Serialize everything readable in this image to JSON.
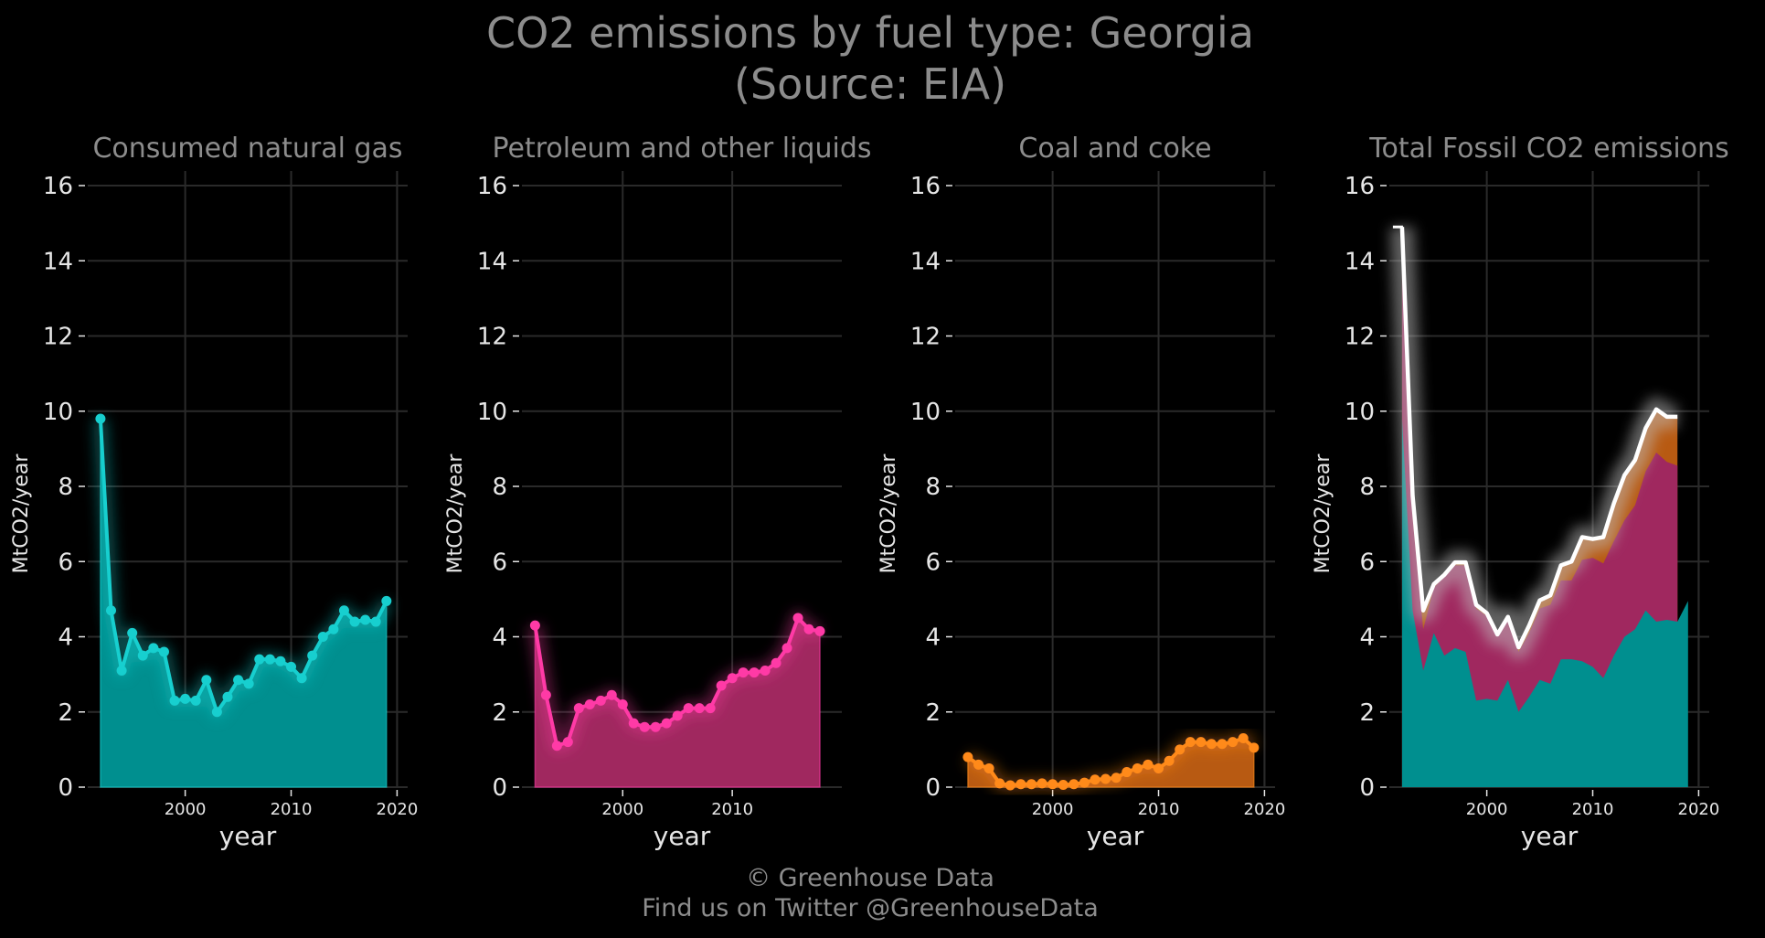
{
  "title_line1": "CO2 emissions by fuel type: Georgia",
  "title_line2": "(Source: EIA)",
  "footer_line1": "© Greenhouse Data",
  "footer_line2": "Find us on Twitter @GreenhouseData",
  "colors": {
    "background": "#000000",
    "grid": "#2a2a2a",
    "gas": "#17cfcf",
    "gas_fill": "#008f8f",
    "petroleum": "#ff3aa6",
    "petroleum_fill": "#a0285f",
    "coal": "#ff8a1a",
    "coal_fill": "#b85a12",
    "total": "#ffffff"
  },
  "chart_data": [
    {
      "type": "area",
      "title": "Consumed natural gas",
      "xlabel": "year",
      "ylabel": "MtCO2/year",
      "xlim": [
        1990.8,
        2021
      ],
      "ylim": [
        0,
        16
      ],
      "xticks": [
        2000,
        2010,
        2020
      ],
      "yticks": [
        0,
        2,
        4,
        6,
        8,
        10,
        12,
        14,
        16
      ],
      "grid": true,
      "series": [
        {
          "color": "#17cfcf",
          "x": [
            1992,
            1993,
            1994,
            1995,
            1996,
            1997,
            1998,
            1999,
            2000,
            2001,
            2002,
            2003,
            2004,
            2005,
            2006,
            2007,
            2008,
            2009,
            2010,
            2011,
            2012,
            2013,
            2014,
            2015,
            2016,
            2017,
            2018,
            2019
          ],
          "values": [
            9.8,
            4.7,
            3.1,
            4.1,
            3.5,
            3.7,
            3.6,
            2.3,
            2.35,
            2.3,
            2.85,
            2.0,
            2.4,
            2.85,
            2.75,
            3.4,
            3.4,
            3.35,
            3.2,
            2.9,
            3.5,
            4.0,
            4.2,
            4.7,
            4.4,
            4.45,
            4.4,
            4.95
          ]
        }
      ]
    },
    {
      "type": "area",
      "title": "Petroleum and other liquids",
      "xlabel": "year",
      "ylabel": "MtCO2/year",
      "xlim": [
        1990.8,
        2020
      ],
      "ylim": [
        0,
        16
      ],
      "xticks": [
        2000,
        2010
      ],
      "yticks": [
        0,
        2,
        4,
        6,
        8,
        10,
        12,
        14,
        16
      ],
      "grid": true,
      "series": [
        {
          "color": "#ff3aa6",
          "x": [
            1992,
            1993,
            1994,
            1995,
            1996,
            1997,
            1998,
            1999,
            2000,
            2001,
            2002,
            2003,
            2004,
            2005,
            2006,
            2007,
            2008,
            2009,
            2010,
            2011,
            2012,
            2013,
            2014,
            2015,
            2016,
            2017,
            2018
          ],
          "values": [
            4.3,
            2.45,
            1.1,
            1.2,
            2.1,
            2.2,
            2.3,
            2.45,
            2.2,
            1.7,
            1.6,
            1.6,
            1.7,
            1.9,
            2.1,
            2.1,
            2.1,
            2.7,
            2.9,
            3.05,
            3.05,
            3.1,
            3.3,
            3.7,
            4.5,
            4.2,
            4.15
          ]
        }
      ]
    },
    {
      "type": "area",
      "title": "Coal and coke",
      "xlabel": "year",
      "ylabel": "MtCO2/year",
      "xlim": [
        1990.8,
        2021
      ],
      "ylim": [
        0,
        16
      ],
      "xticks": [
        2000,
        2010,
        2020
      ],
      "yticks": [
        0,
        2,
        4,
        6,
        8,
        10,
        12,
        14,
        16
      ],
      "grid": true,
      "series": [
        {
          "color": "#ff8a1a",
          "x": [
            1992,
            1993,
            1994,
            1995,
            1996,
            1997,
            1998,
            1999,
            2000,
            2001,
            2002,
            2003,
            2004,
            2005,
            2006,
            2007,
            2008,
            2009,
            2010,
            2011,
            2012,
            2013,
            2014,
            2015,
            2016,
            2017,
            2018,
            2019
          ],
          "values": [
            0.8,
            0.6,
            0.5,
            0.1,
            0.05,
            0.08,
            0.08,
            0.1,
            0.08,
            0.06,
            0.08,
            0.12,
            0.2,
            0.22,
            0.25,
            0.4,
            0.5,
            0.6,
            0.5,
            0.7,
            1.0,
            1.2,
            1.2,
            1.15,
            1.15,
            1.2,
            1.3,
            1.05
          ]
        }
      ]
    },
    {
      "type": "area",
      "title": "Total Fossil CO2 emissions",
      "xlabel": "year",
      "ylabel": "MtCO2/year",
      "xlim": [
        1990.8,
        2021
      ],
      "ylim": [
        0,
        16
      ],
      "xticks": [
        2000,
        2010,
        2020
      ],
      "yticks": [
        0,
        2,
        4,
        6,
        8,
        10,
        12,
        14,
        16
      ],
      "grid": true,
      "x": [
        1992,
        1993,
        1994,
        1995,
        1996,
        1997,
        1998,
        1999,
        2000,
        2001,
        2002,
        2003,
        2004,
        2005,
        2006,
        2007,
        2008,
        2009,
        2010,
        2011,
        2012,
        2013,
        2014,
        2015,
        2016,
        2017,
        2018,
        2019
      ],
      "stacked_series": [
        {
          "color": "#008f8f",
          "values": [
            9.8,
            4.7,
            3.1,
            4.1,
            3.5,
            3.7,
            3.6,
            2.3,
            2.35,
            2.3,
            2.85,
            2.0,
            2.4,
            2.85,
            2.75,
            3.4,
            3.4,
            3.35,
            3.2,
            2.9,
            3.5,
            4.0,
            4.2,
            4.7,
            4.4,
            4.45,
            4.4,
            4.95
          ]
        },
        {
          "color": "#a0285f",
          "values": [
            14.1,
            7.15,
            4.2,
            5.3,
            5.6,
            5.9,
            5.9,
            4.75,
            4.55,
            4.0,
            4.45,
            3.6,
            4.1,
            4.75,
            4.85,
            5.5,
            5.5,
            6.05,
            6.1,
            5.95,
            6.55,
            7.1,
            7.5,
            8.4,
            8.9,
            8.65,
            8.55,
            null
          ]
        },
        {
          "color": "#b85a12",
          "values": [
            14.9,
            7.75,
            4.7,
            5.4,
            5.65,
            5.98,
            5.98,
            4.85,
            4.63,
            4.06,
            4.53,
            3.72,
            4.3,
            4.97,
            5.1,
            5.9,
            6.0,
            6.65,
            6.6,
            6.65,
            7.55,
            8.3,
            8.7,
            9.55,
            10.05,
            9.85,
            9.85,
            null
          ]
        }
      ],
      "total_line": {
        "color": "#ffffff",
        "x": [
          1992,
          1993,
          1994,
          1995,
          1996,
          1997,
          1998,
          1999,
          2000,
          2001,
          2002,
          2003,
          2004,
          2005,
          2006,
          2007,
          2008,
          2009,
          2010,
          2011,
          2012,
          2013,
          2014,
          2015,
          2016,
          2017,
          2018
        ],
        "values": [
          14.9,
          7.75,
          4.7,
          5.4,
          5.65,
          5.98,
          5.98,
          4.85,
          4.63,
          4.06,
          4.53,
          3.72,
          4.3,
          4.97,
          5.1,
          5.9,
          6.0,
          6.65,
          6.6,
          6.65,
          7.55,
          8.3,
          8.7,
          9.55,
          10.05,
          9.85,
          9.85
        ]
      }
    }
  ]
}
